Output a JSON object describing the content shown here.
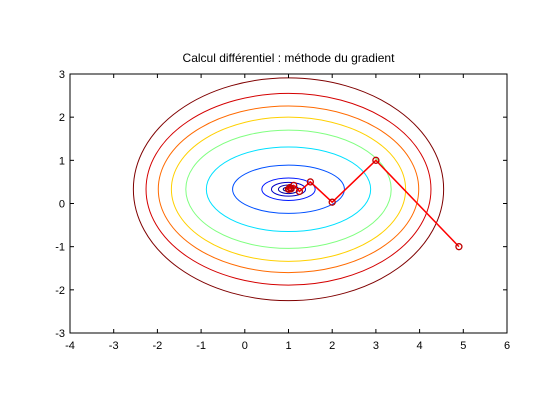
{
  "chart_data": {
    "type": "line",
    "title": "Calcul différentiel : méthode du gradient",
    "xlabel": "",
    "ylabel": "",
    "xlim": [
      -4,
      6
    ],
    "ylim": [
      -3,
      3
    ],
    "xticks": [
      -4,
      -3,
      -2,
      -1,
      0,
      1,
      2,
      3,
      4,
      5,
      6
    ],
    "yticks": [
      -3,
      -2,
      -1,
      0,
      1,
      2,
      3
    ],
    "grid": false,
    "contour": {
      "center": [
        1.0,
        0.33
      ],
      "semi_axes_x": [
        0.12,
        0.23,
        0.39,
        0.61,
        1.28,
        1.88,
        2.35,
        2.68,
        2.98,
        3.26,
        3.55
      ],
      "semi_axes_y": [
        0.05,
        0.1,
        0.16,
        0.26,
        0.56,
        0.98,
        1.37,
        1.67,
        1.93,
        2.22,
        2.58
      ],
      "colors": [
        "#00007f",
        "#0000a6",
        "#0000c8",
        "#0018ff",
        "#0050ff",
        "#00e0ff",
        "#80ff80",
        "#ffd000",
        "#ff6a00",
        "#d40000",
        "#7f0000"
      ]
    },
    "series": [
      {
        "color": "#ff0000",
        "marker": "circle",
        "x": [
          4.9,
          3.0,
          2.0,
          1.5,
          1.25,
          1.12,
          1.06,
          1.03,
          1.01,
          1.0
        ],
        "y": [
          -1.0,
          1.0,
          0.03,
          0.5,
          0.28,
          0.42,
          0.34,
          0.37,
          0.33,
          0.33
        ]
      }
    ]
  }
}
